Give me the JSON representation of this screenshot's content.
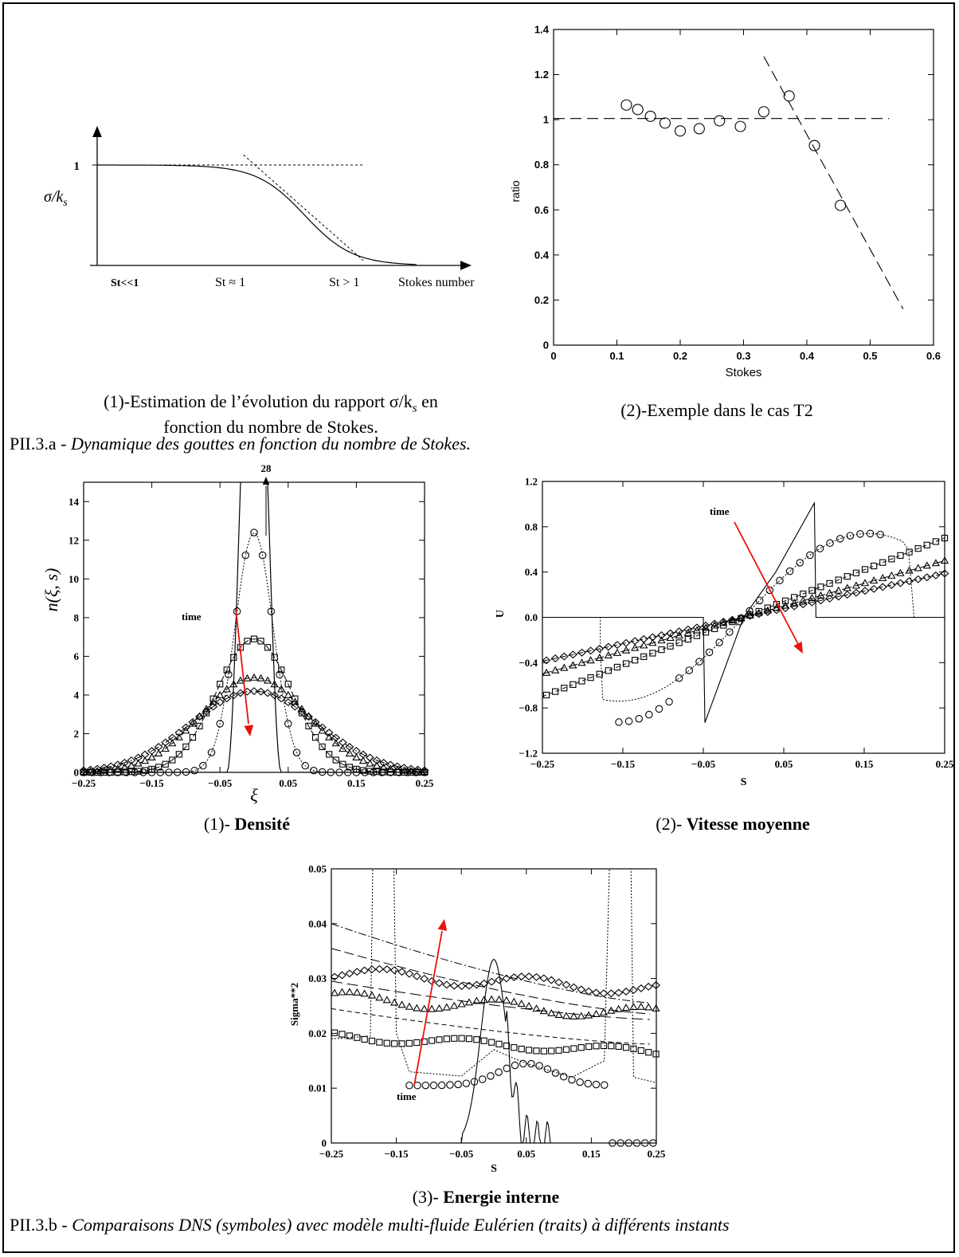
{
  "chart_data": [
    {
      "id": "schematic",
      "type": "line",
      "title": "",
      "ylabel": "σ/k_s",
      "xlabel": "Stokes number",
      "y_tick_labels": [
        "1"
      ],
      "x_tick_labels": [
        "St<<1",
        "St ≈ 1",
        "St > 1"
      ],
      "series": [
        {
          "style": "solid",
          "description": "",
          "points": [
            [
              0,
              1
            ],
            [
              0.35,
              1
            ],
            [
              0.5,
              0.96
            ],
            [
              0.7,
              0.78
            ],
            [
              0.85,
              0.45
            ],
            [
              0.95,
              0.22
            ],
            [
              1.05,
              0.1
            ],
            [
              1.2,
              0.03
            ]
          ]
        },
        {
          "style": "dotted",
          "points": [
            [
              0,
              1
            ],
            [
              1.0,
              1
            ]
          ]
        },
        {
          "style": "dotted",
          "points": [
            [
              0.55,
              1.1
            ],
            [
              1.0,
              0.05
            ]
          ]
        }
      ]
    },
    {
      "id": "ratio",
      "type": "scatter",
      "xlabel": "Stokes",
      "ylabel": "ratio",
      "xlim": [
        0,
        0.6
      ],
      "ylim": [
        0,
        1.4
      ],
      "xticks": [
        0,
        0.1,
        0.2,
        0.3,
        0.4,
        0.5,
        0.6
      ],
      "yticks": [
        0,
        0.2,
        0.4,
        0.6,
        0.8,
        1,
        1.2,
        1.4
      ],
      "points": [
        [
          0.115,
          1.065
        ],
        [
          0.133,
          1.045
        ],
        [
          0.153,
          1.015
        ],
        [
          0.176,
          0.985
        ],
        [
          0.2,
          0.95
        ],
        [
          0.23,
          0.96
        ],
        [
          0.262,
          0.995
        ],
        [
          0.295,
          0.97
        ],
        [
          0.332,
          1.035
        ],
        [
          0.372,
          1.105
        ],
        [
          0.412,
          0.885
        ],
        [
          0.453,
          0.62
        ]
      ],
      "reference_lines": [
        {
          "style": "dashed",
          "points": [
            [
              0,
              1.005
            ],
            [
              0.53,
              1.005
            ]
          ]
        },
        {
          "style": "dashed",
          "points": [
            [
              0.332,
              1.28
            ],
            [
              0.552,
              0.16
            ]
          ]
        }
      ]
    },
    {
      "id": "density",
      "type": "line",
      "xlabel": "ξ",
      "ylabel": "n(ξ, s)",
      "xlim": [
        -0.25,
        0.25
      ],
      "ylim": [
        0,
        15
      ],
      "xticks": [
        -0.25,
        -0.15,
        -0.05,
        0.05,
        0.15,
        0.25
      ],
      "yticks": [
        0,
        2,
        4,
        6,
        8,
        10,
        12,
        14
      ],
      "annotation_peak": "28",
      "annotation_time": "time",
      "series": [
        {
          "marker": "circle",
          "amplitude": 12.4,
          "sigma": 0.028
        },
        {
          "marker": "square",
          "amplitude": 6.9,
          "sigma": 0.055
        },
        {
          "marker": "triangle",
          "amplitude": 4.9,
          "sigma": 0.078
        },
        {
          "marker": "diamond",
          "amplitude": 4.2,
          "sigma": 0.092
        },
        {
          "line": "solid",
          "amplitude": 28,
          "half_width": 0.04
        }
      ]
    },
    {
      "id": "velocity",
      "type": "line",
      "xlabel": "S",
      "ylabel": "U",
      "xlim": [
        -0.25,
        0.25
      ],
      "ylim": [
        -1.2,
        1.2
      ],
      "xticks": [
        -0.25,
        -0.15,
        -0.05,
        0.05,
        0.15,
        0.25
      ],
      "yticks": [
        -1.2,
        -0.8,
        -0.4,
        0.0,
        0.4,
        0.8,
        1.2
      ],
      "ytick_labels": [
        "−1.2",
        "−0.8",
        "−0.4",
        "0.0",
        "0.4",
        "0.8",
        "1.2"
      ],
      "annotation_time": "time",
      "series": [
        {
          "marker": "diamond",
          "slope": 1.55
        },
        {
          "marker": "triangle",
          "slope": 2.0
        },
        {
          "marker": "square",
          "slope": 2.8
        },
        {
          "marker": "circle",
          "description": "S-shaped profile between −0.15 and 0.15"
        },
        {
          "line": "solid",
          "description": "shock profile, peak 1.0 near 0.09"
        }
      ]
    },
    {
      "id": "energy",
      "type": "line",
      "xlabel": "S",
      "ylabel": "Sigma**2",
      "xlim": [
        -0.25,
        0.25
      ],
      "ylim": [
        0,
        0.05
      ],
      "xticks": [
        -0.25,
        -0.15,
        -0.05,
        0.05,
        0.15,
        0.25
      ],
      "yticks": [
        0,
        0.01,
        0.02,
        0.03,
        0.04,
        0.05
      ],
      "annotation_time": "time",
      "series": [
        {
          "marker": "diamond",
          "approx_level": 0.03
        },
        {
          "marker": "triangle",
          "approx_level": 0.026
        },
        {
          "marker": "square",
          "approx_level": 0.019
        },
        {
          "marker": "circle",
          "approx_level": 0.011
        },
        {
          "line": "solid",
          "peak": 0.0335
        }
      ]
    }
  ],
  "captions": {
    "a1_line1": "(1)-Estimation de l’évolution du rapport σ/k",
    "a1_sub": "s",
    "a1_line1_end": " en",
    "a1_line2": "fonction du nombre de Stokes.",
    "a2": "(2)-Exemple dans le cas T2",
    "fig_a_label": "PII.3.a -",
    "fig_a_text": "Dynamique des gouttes en fonction du nombre de Stokes.",
    "b1_prefix": "(1)- ",
    "b1_bold": "Densité",
    "b2_prefix": "(2)- ",
    "b2_bold": "Vitesse moyenne",
    "b3_prefix": "(3)- ",
    "b3_bold": "Energie interne",
    "fig_b_label": "PII.3.b -",
    "fig_b_text": "Comparaisons DNS (symboles) avec modèle multi-fluide Eulérien (traits) à différents instants"
  },
  "colors": {
    "axis": "#000000",
    "arrow": "#e8120c"
  }
}
